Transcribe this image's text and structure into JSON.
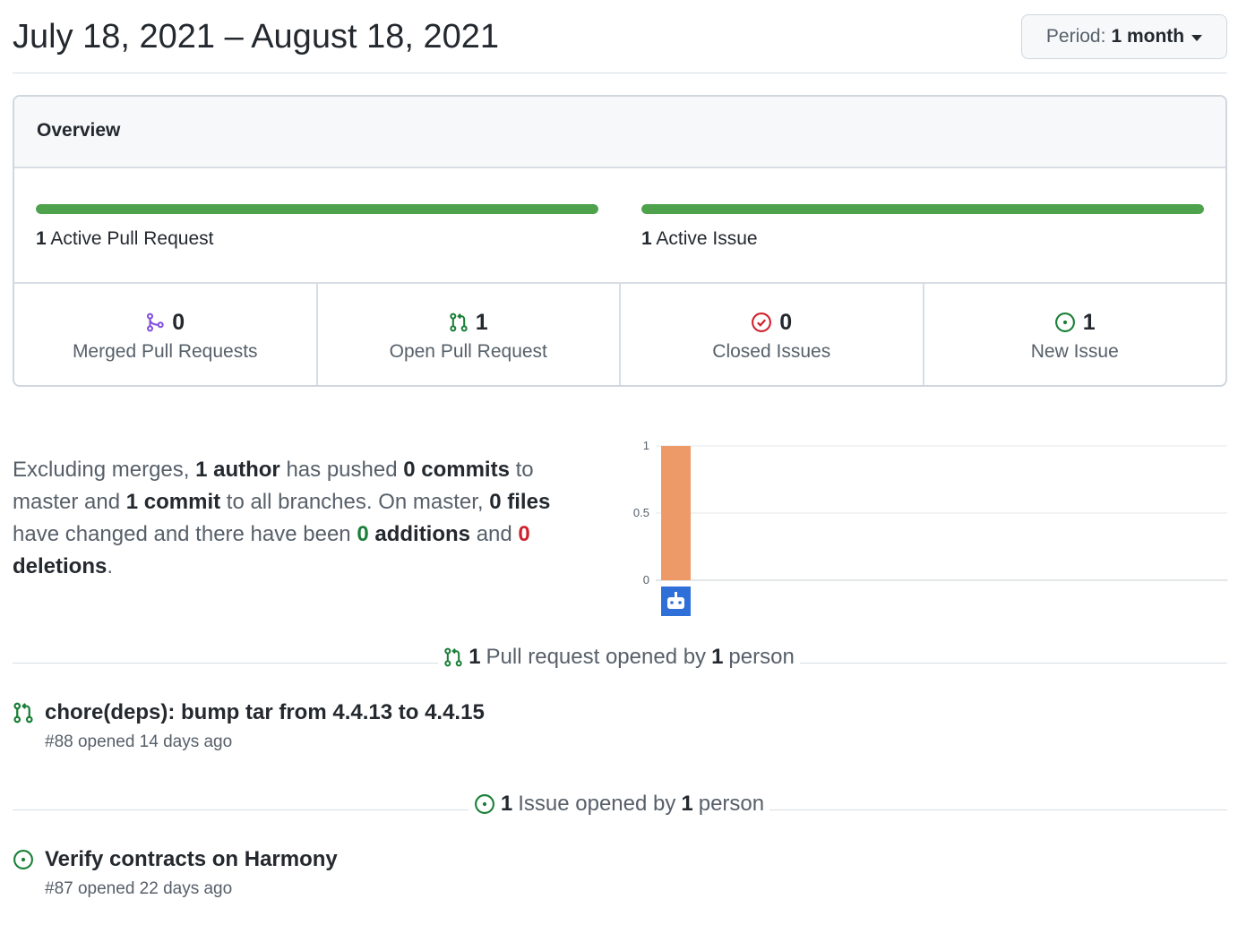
{
  "header": {
    "date_range": "July 18, 2021 – August 18, 2021",
    "period_label": "Period:",
    "period_value": "1 month"
  },
  "overview": {
    "title": "Overview",
    "pr_bar": {
      "count": "1",
      "label": "Active Pull Request",
      "fill_fraction": 1.0
    },
    "issue_bar": {
      "count": "1",
      "label": "Active Issue",
      "fill_fraction": 1.0
    },
    "stats": [
      {
        "count": "0",
        "label": "Merged Pull Requests",
        "icon": "merge-icon"
      },
      {
        "count": "1",
        "label": "Open Pull Request",
        "icon": "pull-request-icon"
      },
      {
        "count": "0",
        "label": "Closed Issues",
        "icon": "issue-closed-icon"
      },
      {
        "count": "1",
        "label": "New Issue",
        "icon": "issue-opened-icon"
      }
    ],
    "colors": {
      "bar": "#4ea24c",
      "merge": "#8250df",
      "open": "#1a7f37",
      "closed": "#cf222e"
    }
  },
  "summary": {
    "t1": "Excluding merges, ",
    "authors": "1 author",
    "t2": " has pushed ",
    "commits_master": "0 commits",
    "t3": " to master and ",
    "commits_all": "1 commit",
    "t4": " to all branches. On master, ",
    "files": "0 files",
    "t5": " have changed and there have been ",
    "additions_n": "0",
    "additions_w": " additions",
    "t6": " and ",
    "deletions_n": "0",
    "deletions_w": " deletions",
    "t7": "."
  },
  "chart_data": {
    "type": "bar",
    "categories": [
      "bot"
    ],
    "values": [
      1
    ],
    "yticks": [
      "1",
      "0.5",
      "0"
    ],
    "ylim": [
      0,
      1
    ],
    "grid": true,
    "bar_color": "#ee9a68",
    "avatar_color": "#2f6fd8"
  },
  "pull_requests": {
    "heading_count": "1",
    "heading_mid": "Pull request opened by",
    "heading_people": "1",
    "heading_end": "person",
    "items": [
      {
        "title": "chore(deps): bump tar from 4.4.13 to 4.4.15",
        "meta": "#88 opened 14 days ago"
      }
    ]
  },
  "issues": {
    "heading_count": "1",
    "heading_mid": "Issue opened by",
    "heading_people": "1",
    "heading_end": "person",
    "items": [
      {
        "title": "Verify contracts on Harmony",
        "meta": "#87 opened 22 days ago"
      }
    ]
  }
}
